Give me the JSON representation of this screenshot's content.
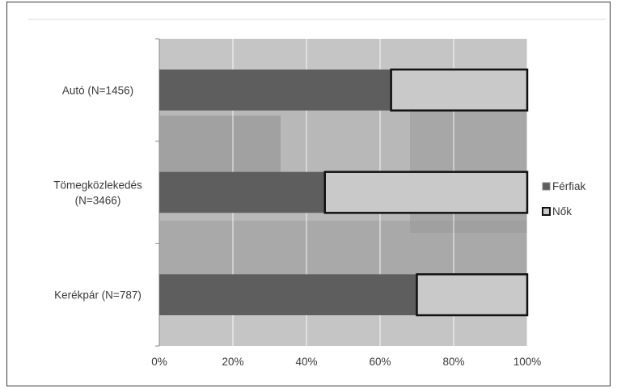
{
  "chart_data": {
    "type": "bar",
    "orientation": "horizontal",
    "stacked": "percent",
    "categories": [
      "Autó (N=1456)",
      "Tömegközlekedés (N=3466)",
      "Kerékpár (N=787)"
    ],
    "category_lines": [
      [
        "Autó (N=1456)"
      ],
      [
        "Tömegközlekedés",
        "(N=3466)"
      ],
      [
        "Kerékpár (N=787)"
      ]
    ],
    "series": [
      {
        "name": "Férfiak",
        "values": [
          63,
          45,
          70
        ]
      },
      {
        "name": "Nők",
        "values": [
          37,
          55,
          30
        ]
      }
    ],
    "x_ticks": [
      "0%",
      "20%",
      "40%",
      "60%",
      "80%",
      "100%"
    ],
    "xlim": [
      0,
      100
    ],
    "grid": "vertical",
    "legend_position": "right",
    "title": "",
    "xlabel": "",
    "ylabel": "",
    "colors": {
      "frame": "#3a3a3a",
      "plot_bg": "#b8b8b8",
      "scene_light": "#cbcbcb",
      "scene_dark": "#8e8e8e",
      "grid": "#ffffff",
      "men": "#5e5e5e",
      "women": "#c9c9c9",
      "women_border": "#111111"
    }
  }
}
